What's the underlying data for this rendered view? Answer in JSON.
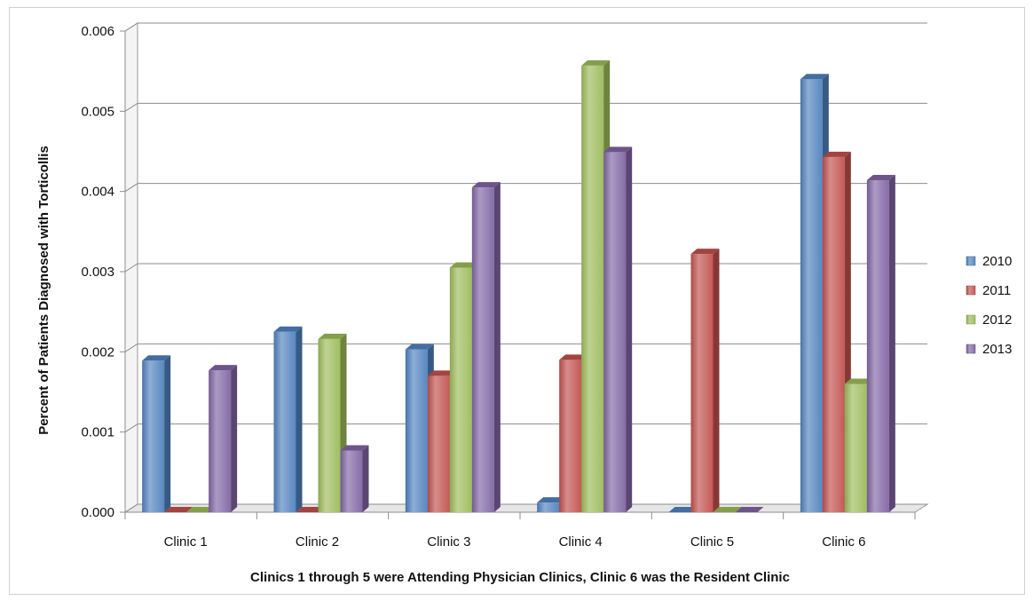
{
  "chart_data": {
    "type": "bar",
    "title": "",
    "xlabel": "Clinics 1 through 5 were Attending Physician Clinics, Clinic 6 was the Resident Clinic",
    "ylabel": "Percent of Patients Diagnosed with Torticollis",
    "ylim": [
      0,
      0.006
    ],
    "yticks": [
      "0.000",
      "0.001",
      "0.002",
      "0.003",
      "0.004",
      "0.005",
      "0.006"
    ],
    "categories": [
      "Clinic 1",
      "Clinic 2",
      "Clinic 3",
      "Clinic 4",
      "Clinic 5",
      "Clinic 6"
    ],
    "series": [
      {
        "name": "2010",
        "values": [
          0.00189,
          0.00225,
          0.00203,
          0.00012,
          0.0,
          0.0054
        ]
      },
      {
        "name": "2011",
        "values": [
          0.0,
          0.0,
          0.0017,
          0.0019,
          0.00322,
          0.00443
        ]
      },
      {
        "name": "2012",
        "values": [
          0.0,
          0.00216,
          0.00305,
          0.00557,
          0.0,
          0.0016
        ]
      },
      {
        "name": "2013",
        "values": [
          0.00177,
          0.00077,
          0.00405,
          0.00449,
          0.0,
          0.00414
        ]
      }
    ],
    "grid": true,
    "legend_position": "right",
    "colors": {
      "2010": "#4f81bd",
      "2011": "#c0504d",
      "2012": "#9bbb59",
      "2013": "#8064a2"
    }
  }
}
